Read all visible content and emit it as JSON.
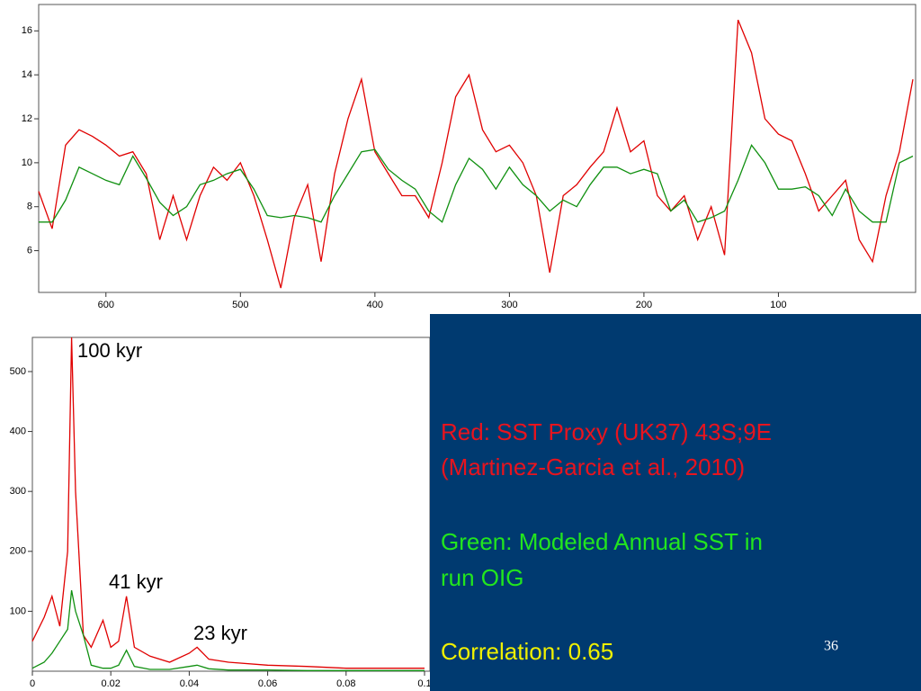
{
  "chart_data": [
    {
      "type": "line",
      "x": [
        650,
        640,
        630,
        620,
        610,
        600,
        590,
        580,
        570,
        560,
        550,
        540,
        530,
        520,
        510,
        500,
        490,
        480,
        470,
        460,
        450,
        440,
        430,
        420,
        410,
        400,
        390,
        380,
        370,
        360,
        350,
        340,
        330,
        320,
        310,
        300,
        290,
        280,
        270,
        260,
        250,
        240,
        230,
        220,
        210,
        200,
        190,
        180,
        170,
        160,
        150,
        140,
        130,
        120,
        110,
        100,
        90,
        80,
        70,
        60,
        50,
        40,
        30,
        20,
        10,
        0
      ],
      "xlim": [
        650,
        0
      ],
      "xticks": [
        600,
        500,
        400,
        300,
        200,
        100
      ],
      "ylim": [
        4.1,
        17.2
      ],
      "yticks": [
        6,
        8,
        10,
        12,
        14,
        16
      ],
      "series": [
        {
          "name": "Red",
          "color": "#e00000",
          "values": [
            8.7,
            7.0,
            10.8,
            11.5,
            11.2,
            10.8,
            10.3,
            10.5,
            9.5,
            6.5,
            8.5,
            6.5,
            8.5,
            9.8,
            9.2,
            10.0,
            8.5,
            6.5,
            4.3,
            7.5,
            9.0,
            5.5,
            9.5,
            12.0,
            13.8,
            10.5,
            9.5,
            8.5,
            8.5,
            7.5,
            10.0,
            13.0,
            14.0,
            11.5,
            10.5,
            10.8,
            10.0,
            8.5,
            5.0,
            8.5,
            9.0,
            9.8,
            10.5,
            12.5,
            10.5,
            11.0,
            8.5,
            7.8,
            8.5,
            6.5,
            8.0,
            5.8,
            16.5,
            15.0,
            12.0,
            11.3,
            11.0,
            9.5,
            7.8,
            8.5,
            9.2,
            6.5,
            5.5,
            8.5,
            10.5,
            13.8
          ]
        },
        {
          "name": "Green",
          "color": "#109010",
          "values": [
            7.3,
            7.3,
            8.3,
            9.8,
            9.5,
            9.2,
            9.0,
            10.3,
            9.3,
            8.2,
            7.6,
            8.0,
            9.0,
            9.2,
            9.5,
            9.7,
            8.8,
            7.6,
            7.5,
            7.6,
            7.5,
            7.3,
            8.5,
            9.5,
            10.5,
            10.6,
            9.7,
            9.2,
            8.8,
            7.8,
            7.3,
            9.0,
            10.2,
            9.7,
            8.8,
            9.8,
            9.0,
            8.5,
            7.8,
            8.3,
            8.0,
            9.0,
            9.8,
            9.8,
            9.5,
            9.7,
            9.5,
            7.8,
            8.3,
            7.3,
            7.5,
            7.8,
            9.2,
            10.8,
            10.0,
            8.8,
            8.8,
            8.9,
            8.5,
            7.6,
            8.8,
            7.8,
            7.3,
            7.3,
            10.0,
            10.3
          ]
        }
      ]
    },
    {
      "type": "line",
      "x": [
        0,
        0.003,
        0.005,
        0.007,
        0.009,
        0.01,
        0.011,
        0.013,
        0.015,
        0.018,
        0.02,
        0.022,
        0.024,
        0.026,
        0.03,
        0.035,
        0.04,
        0.042,
        0.045,
        0.05,
        0.06,
        0.07,
        0.08,
        0.09,
        0.1
      ],
      "xlim": [
        0,
        0.1
      ],
      "xticks": [
        0,
        0.02,
        0.04,
        0.06,
        0.08,
        0.1
      ],
      "ylim": [
        0,
        557
      ],
      "yticks": [
        100,
        200,
        300,
        400,
        500
      ],
      "annotations": [
        "100 kyr",
        "41 kyr",
        "23 kyr"
      ],
      "series": [
        {
          "name": "Red",
          "color": "#e00000",
          "values": [
            50,
            90,
            125,
            75,
            200,
            557,
            300,
            60,
            40,
            85,
            40,
            50,
            125,
            40,
            25,
            15,
            30,
            40,
            20,
            15,
            10,
            8,
            5,
            5,
            5
          ]
        },
        {
          "name": "Green",
          "color": "#109010",
          "values": [
            5,
            15,
            30,
            50,
            70,
            135,
            100,
            60,
            10,
            5,
            5,
            10,
            35,
            8,
            3,
            3,
            8,
            10,
            4,
            2,
            2,
            1,
            1,
            1,
            1
          ]
        }
      ]
    }
  ],
  "text_box": {
    "lines": [
      "Red: SST Proxy (UK37) 43S;9E",
      "(Martinez-Garcia et al., 2010)",
      "Green: Modeled Annual SST in",
      "run OIG",
      "Correlation: 0.65"
    ],
    "page_number": "36"
  }
}
